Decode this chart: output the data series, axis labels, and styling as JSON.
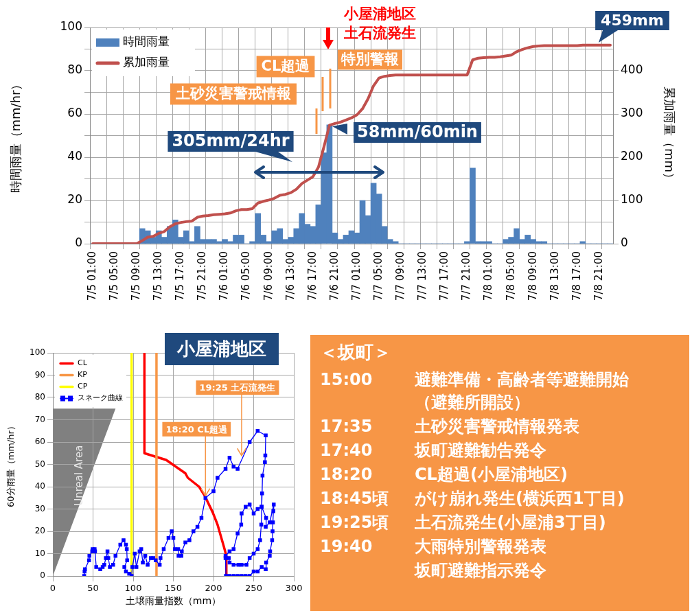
{
  "chart_data": [
    {
      "type": "bar",
      "categories": [
        "7/5 01:00",
        null,
        null,
        null,
        "7/5 05:00",
        null,
        null,
        null,
        "7/5 09:00",
        null,
        null,
        null,
        "7/5 13:00",
        null,
        null,
        null,
        "7/5 17:00",
        null,
        null,
        null,
        "7/5 21:00",
        null,
        null,
        null,
        "7/6 01:00",
        null,
        null,
        null,
        "7/6 05:00",
        null,
        null,
        null,
        "7/6 09:00",
        null,
        null,
        null,
        "7/6 13:00",
        null,
        null,
        null,
        "7/6 17:00",
        null,
        null,
        null,
        "7/6 21:00",
        null,
        null,
        null,
        "7/7 01:00",
        null,
        null,
        null,
        "7/7 05:00",
        null,
        null,
        null,
        "7/7 09:00",
        null,
        null,
        null,
        "7/7 13:00",
        null,
        null,
        null,
        "7/7 17:00",
        null,
        null,
        null,
        "7/7 21:00",
        null,
        null,
        null,
        "7/8 01:00",
        null,
        null,
        null,
        "7/8 05:00",
        null,
        null,
        null,
        "7/8 09:00",
        null,
        null,
        null,
        "7/8 13:00",
        null,
        null,
        null,
        "7/8 17:00",
        null,
        null,
        null,
        "7/8 21:00",
        null,
        null
      ],
      "series": [
        {
          "name": "時間雨量",
          "type": "bar",
          "color": "#4f81bd",
          "values": [
            0,
            0,
            0,
            0,
            0,
            0,
            0,
            0,
            0,
            7,
            6,
            3,
            6,
            3,
            8,
            11,
            3,
            6,
            1,
            8,
            2,
            2,
            2,
            1,
            2,
            1,
            4,
            4,
            0,
            1,
            14,
            4,
            1,
            6,
            7,
            2,
            3,
            7,
            14,
            9,
            8,
            18,
            42,
            55,
            5,
            2,
            4,
            6,
            5,
            20,
            13,
            28,
            23,
            8,
            2,
            1,
            0,
            0,
            0,
            0,
            0,
            0,
            0,
            0,
            0,
            0,
            0,
            0,
            1,
            35,
            1,
            1,
            1,
            0,
            0,
            2,
            3,
            7,
            2,
            4,
            2,
            1,
            1,
            0,
            0,
            0,
            0,
            0,
            0,
            1,
            0,
            0,
            0,
            0,
            0
          ]
        },
        {
          "name": "累加雨量",
          "type": "line",
          "axis": "y2",
          "color": "#c0504d",
          "values": [
            0,
            0,
            0,
            0,
            0,
            0,
            0,
            0,
            0,
            7,
            15,
            17,
            24,
            28,
            39,
            46,
            49,
            51,
            52,
            61,
            64,
            65,
            67,
            68,
            69,
            71,
            76,
            79,
            79,
            81,
            94,
            98,
            101,
            105,
            112,
            114,
            118,
            126,
            139,
            147,
            155,
            177,
            224,
            274,
            278,
            281,
            286,
            291,
            298,
            312,
            335,
            365,
            383,
            387,
            389,
            390,
            390,
            390,
            390,
            390,
            390,
            390,
            390,
            390,
            390,
            390,
            390,
            390,
            390,
            425,
            429,
            430,
            431,
            431,
            432,
            434,
            436,
            444,
            449,
            453,
            456,
            457,
            458,
            458,
            458,
            458,
            458,
            458,
            458,
            459,
            459,
            459,
            459,
            459,
            459
          ]
        }
      ],
      "ylabel": "時間雨量（mm/hr）",
      "y2label": "累加雨量（mm）",
      "ylim": [
        0,
        100
      ],
      "yticks": [
        0,
        {
          "value": 10,
          "label": null
        },
        20,
        {
          "value": 30,
          "label": null
        },
        40,
        {
          "value": 50,
          "label": null
        },
        60,
        {
          "value": 70,
          "label": null
        },
        80,
        {
          "value": 90,
          "label": null
        },
        100
      ],
      "y2lim": [
        0,
        500
      ],
      "y2ticks": [
        0,
        100,
        200,
        300,
        400,
        {
          "value": 500,
          "label": null
        }
      ],
      "grid": true,
      "legend": "top left",
      "marker": "none",
      "annotations": [
        "小屋浦地区土石流発生",
        "特別警報",
        "CL超過",
        "土砂災害警戒情報",
        "305mm/24hr",
        "58mm/60min",
        "459mm"
      ]
    },
    {
      "type": "line",
      "title": "小屋浦地区",
      "xlabel": "土壌雨量指数（mm）",
      "ylabel": "60分雨量（mm/hr）",
      "xlim": [
        0,
        300
      ],
      "xticks": [
        0,
        50,
        100,
        150,
        200,
        250,
        300
      ],
      "ylim": [
        0,
        100
      ],
      "yticks": [
        0,
        10,
        20,
        30,
        40,
        50,
        60,
        70,
        80,
        90,
        100
      ],
      "grid": true,
      "legend": "top left",
      "marker": "none",
      "series": [
        {
          "type": "line",
          "name": "CL",
          "color": "#ff0000",
          "x": [
            114,
            114,
            141,
            149,
            165,
            168,
            182,
            189,
            199,
            205,
            213,
            216,
            216
          ],
          "values": [
            100,
            55,
            52,
            50,
            46,
            44,
            40,
            36,
            28.5,
            23,
            13,
            9,
            0
          ]
        },
        {
          "type": "line",
          "name": "KP",
          "color": "#f79646",
          "x": [
            129,
            129
          ],
          "values": [
            0,
            100
          ]
        },
        {
          "type": "line",
          "name": "CP",
          "color": "#ffff00",
          "x": [
            98,
            98
          ],
          "values": [
            0,
            100
          ]
        },
        {
          "type": "line",
          "name": "スネーク曲線",
          "color": "#0000ff",
          "marker": "square",
          "x": [
            39,
            39.5,
            40,
            45,
            45.5,
            49,
            49.5,
            52,
            52.5,
            54,
            59,
            62,
            64,
            66,
            68,
            69,
            71,
            75,
            78,
            84,
            88,
            91,
            92,
            92.5,
            89,
            91,
            95,
            98,
            99,
            102,
            104,
            108,
            110,
            112,
            115,
            118,
            122,
            125,
            128,
            133,
            134,
            138,
            144,
            148,
            150,
            152,
            156,
            156.5,
            160,
            160.5,
            165,
            170,
            175,
            180,
            185,
            190,
            200,
            205,
            215,
            220,
            225,
            230,
            245,
            255,
            265,
            264.5,
            264,
            261,
            260.5,
            260,
            259.5,
            258,
            255,
            250,
            245,
            241,
            235,
            231,
            225,
            220,
            219,
            215,
            215.5,
            220,
            225,
            230,
            235,
            240,
            245,
            250,
            255,
            260,
            265,
            265.5,
            270,
            270.5,
            273,
            273.5,
            274,
            274.5,
            275,
            270,
            265,
            265.5,
            260,
            255,
            250,
            245,
            240,
            235,
            234.5,
            230,
            225,
            220,
            215
          ],
          "values": [
            0,
            2,
            3,
            7,
            9,
            11,
            12,
            12,
            11,
            4,
            3,
            4,
            5,
            8,
            11,
            8,
            4,
            5,
            9,
            14,
            16,
            14,
            12,
            7,
            4,
            2,
            1,
            0,
            4,
            10,
            4,
            11,
            12,
            6,
            9,
            5,
            8,
            8,
            7,
            5,
            8,
            12,
            17,
            20,
            17,
            12,
            12,
            9,
            9,
            11,
            15,
            16,
            20,
            22,
            26,
            35,
            38,
            44,
            48,
            53,
            49,
            48,
            60,
            65,
            63,
            54,
            51,
            45,
            37,
            31,
            23,
            16,
            12,
            10,
            8,
            5,
            5,
            5,
            5,
            6,
            8,
            8,
            0,
            0,
            0,
            0,
            0,
            0,
            0,
            2,
            2,
            4,
            3,
            6,
            9,
            11,
            16,
            20,
            24,
            29,
            32,
            24,
            22,
            26,
            31,
            30,
            28,
            32,
            31,
            28,
            23,
            19,
            12,
            11,
            9
          ]
        }
      ],
      "annotations": [
        {
          "text": "18:20 CL超過",
          "x": 190,
          "y": 35
        },
        {
          "text": "19:25 土石流発生",
          "x": 235,
          "y": 53
        },
        "Unreal Area"
      ]
    },
    {
      "type": "other",
      "title": "＜坂町＞",
      "categories": [
        "15:00",
        "17:35",
        "17:40",
        "18:20",
        "18:45頃",
        "19:25頃",
        "19:40",
        null
      ],
      "annotations": [
        "避難準備・高齢者等避難開始（避難所開設）",
        "土砂災害警戒情報発表",
        "坂町避難勧告発令",
        "CL超過(小屋浦地区)",
        "がけ崩れ発生(横浜西1丁目)",
        "土石流発生(小屋浦3丁目)",
        "大雨特別警報発表",
        "坂町避難指示発令"
      ]
    }
  ]
}
